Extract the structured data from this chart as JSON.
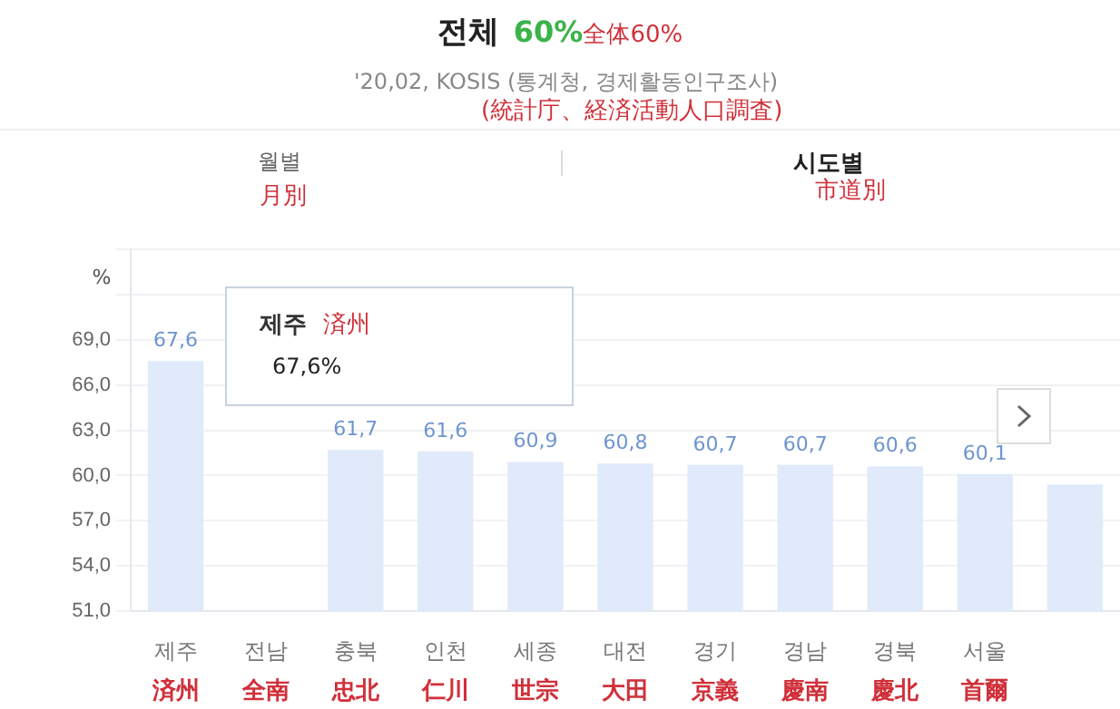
{
  "chart_data": {
    "type": "bar",
    "title": "전체",
    "subtitle": "'20,02, KOSIS (통계청, 경제활동인구조사)",
    "ylabel": "%",
    "annotations": [
      "60%",
      "全体60%",
      "(統計庁、経済活動人口調査)",
      "월별",
      "月別",
      "시도별",
      "市道別",
      "제주",
      "済州",
      "67,6%"
    ],
    "categories": [
      "제주\n済州",
      "전남\n全南",
      "충북\n忠北",
      "인천\n仁川",
      "세종\n世宗",
      "대전\n大田",
      "경기\n京義",
      "경남\n慶南",
      "경북\n慶北",
      "서울\n首爾",
      null
    ],
    "series": [
      {
        "color": "#e1eafa",
        "values": [
          67.6,
          null,
          61.7,
          61.6,
          60.9,
          60.8,
          60.7,
          60.7,
          60.6,
          60.1,
          59.4
        ],
        "value_labels": [
          "67,6",
          null,
          "61,7",
          "61,6",
          "60,9",
          "60,8",
          "60,7",
          "60,7",
          "60,6",
          "60,1",
          null
        ]
      }
    ],
    "ylim": [
      51,
      75
    ],
    "yticks": [
      {
        "value": 51,
        "label": "51,0"
      },
      {
        "value": 54,
        "label": "54,0"
      },
      {
        "value": 57,
        "label": "57,0"
      },
      {
        "value": 60,
        "label": "60,0"
      },
      {
        "value": 63,
        "label": "63,0"
      },
      {
        "value": 66,
        "label": "66,0"
      },
      {
        "value": 69,
        "label": "69,0"
      },
      {
        "value": 72,
        "label": null
      },
      {
        "value": 75,
        "label": null
      }
    ],
    "grid": "y",
    "legend": false
  }
}
